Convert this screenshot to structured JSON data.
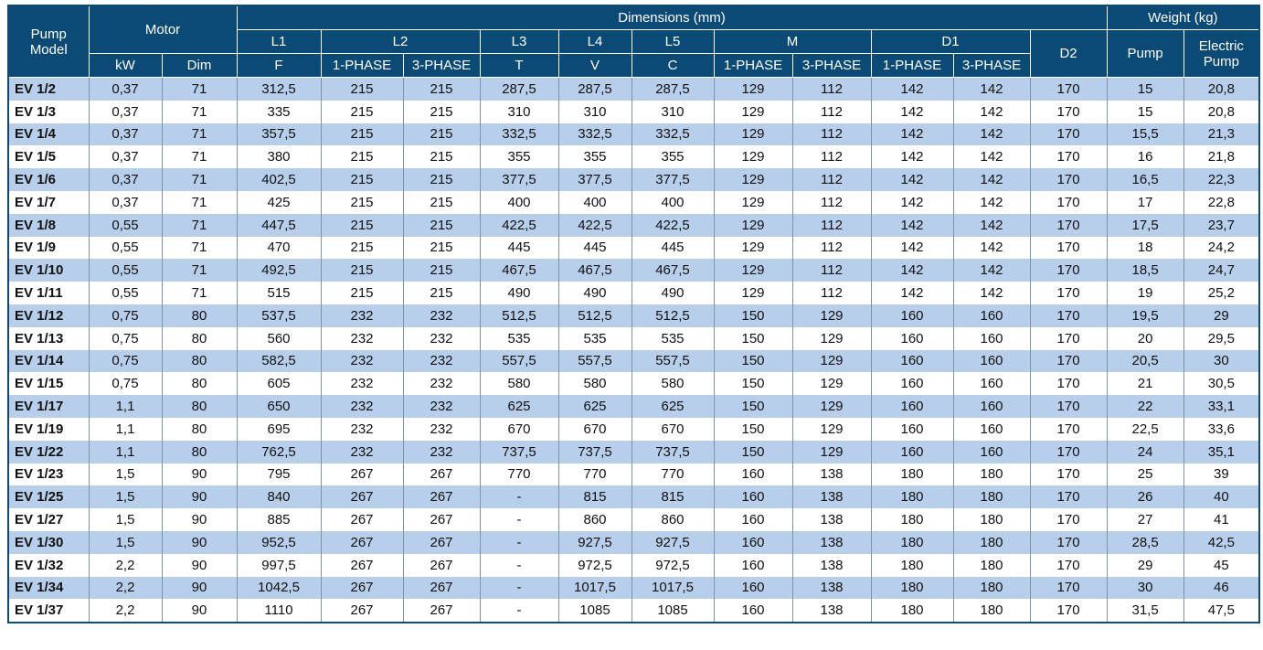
{
  "header": {
    "pump_model": "Pump Model",
    "motor": "Motor",
    "kw": "kW",
    "dim": "Dim",
    "dimensions": "Dimensions (mm)",
    "l1": "L1",
    "f": "F",
    "l2": "L2",
    "l2_1phase": "1-PHASE",
    "l2_3phase": "3-PHASE",
    "l3": "L3",
    "t": "T",
    "l4": "L4",
    "v": "V",
    "l5": "L5",
    "c": "C",
    "m": "M",
    "m_1phase": "1-PHASE",
    "m_3phase": "3-PHASE",
    "d1": "D1",
    "d1_1phase": "1-PHASE",
    "d1_3phase": "3-PHASE",
    "d2": "D2",
    "weight": "Weight (kg)",
    "pump": "Pump",
    "electric_pump": "Electric Pump"
  },
  "table": {
    "rows": [
      [
        "EV 1/2",
        "0,37",
        "71",
        "312,5",
        "215",
        "215",
        "287,5",
        "287,5",
        "287,5",
        "129",
        "112",
        "142",
        "142",
        "170",
        "15",
        "20,8"
      ],
      [
        "EV 1/3",
        "0,37",
        "71",
        "335",
        "215",
        "215",
        "310",
        "310",
        "310",
        "129",
        "112",
        "142",
        "142",
        "170",
        "15",
        "20,8"
      ],
      [
        "EV 1/4",
        "0,37",
        "71",
        "357,5",
        "215",
        "215",
        "332,5",
        "332,5",
        "332,5",
        "129",
        "112",
        "142",
        "142",
        "170",
        "15,5",
        "21,3"
      ],
      [
        "EV 1/5",
        "0,37",
        "71",
        "380",
        "215",
        "215",
        "355",
        "355",
        "355",
        "129",
        "112",
        "142",
        "142",
        "170",
        "16",
        "21,8"
      ],
      [
        "EV 1/6",
        "0,37",
        "71",
        "402,5",
        "215",
        "215",
        "377,5",
        "377,5",
        "377,5",
        "129",
        "112",
        "142",
        "142",
        "170",
        "16,5",
        "22,3"
      ],
      [
        "EV 1/7",
        "0,37",
        "71",
        "425",
        "215",
        "215",
        "400",
        "400",
        "400",
        "129",
        "112",
        "142",
        "142",
        "170",
        "17",
        "22,8"
      ],
      [
        "EV 1/8",
        "0,55",
        "71",
        "447,5",
        "215",
        "215",
        "422,5",
        "422,5",
        "422,5",
        "129",
        "112",
        "142",
        "142",
        "170",
        "17,5",
        "23,7"
      ],
      [
        "EV 1/9",
        "0,55",
        "71",
        "470",
        "215",
        "215",
        "445",
        "445",
        "445",
        "129",
        "112",
        "142",
        "142",
        "170",
        "18",
        "24,2"
      ],
      [
        "EV 1/10",
        "0,55",
        "71",
        "492,5",
        "215",
        "215",
        "467,5",
        "467,5",
        "467,5",
        "129",
        "112",
        "142",
        "142",
        "170",
        "18,5",
        "24,7"
      ],
      [
        "EV 1/11",
        "0,55",
        "71",
        "515",
        "215",
        "215",
        "490",
        "490",
        "490",
        "129",
        "112",
        "142",
        "142",
        "170",
        "19",
        "25,2"
      ],
      [
        "EV 1/12",
        "0,75",
        "80",
        "537,5",
        "232",
        "232",
        "512,5",
        "512,5",
        "512,5",
        "150",
        "129",
        "160",
        "160",
        "170",
        "19,5",
        "29"
      ],
      [
        "EV 1/13",
        "0,75",
        "80",
        "560",
        "232",
        "232",
        "535",
        "535",
        "535",
        "150",
        "129",
        "160",
        "160",
        "170",
        "20",
        "29,5"
      ],
      [
        "EV 1/14",
        "0,75",
        "80",
        "582,5",
        "232",
        "232",
        "557,5",
        "557,5",
        "557,5",
        "150",
        "129",
        "160",
        "160",
        "170",
        "20,5",
        "30"
      ],
      [
        "EV 1/15",
        "0,75",
        "80",
        "605",
        "232",
        "232",
        "580",
        "580",
        "580",
        "150",
        "129",
        "160",
        "160",
        "170",
        "21",
        "30,5"
      ],
      [
        "EV 1/17",
        "1,1",
        "80",
        "650",
        "232",
        "232",
        "625",
        "625",
        "625",
        "150",
        "129",
        "160",
        "160",
        "170",
        "22",
        "33,1"
      ],
      [
        "EV 1/19",
        "1,1",
        "80",
        "695",
        "232",
        "232",
        "670",
        "670",
        "670",
        "150",
        "129",
        "160",
        "160",
        "170",
        "22,5",
        "33,6"
      ],
      [
        "EV 1/22",
        "1,1",
        "80",
        "762,5",
        "232",
        "232",
        "737,5",
        "737,5",
        "737,5",
        "150",
        "129",
        "160",
        "160",
        "170",
        "24",
        "35,1"
      ],
      [
        "EV 1/23",
        "1,5",
        "90",
        "795",
        "267",
        "267",
        "770",
        "770",
        "770",
        "160",
        "138",
        "180",
        "180",
        "170",
        "25",
        "39"
      ],
      [
        "EV 1/25",
        "1,5",
        "90",
        "840",
        "267",
        "267",
        "-",
        "815",
        "815",
        "160",
        "138",
        "180",
        "180",
        "170",
        "26",
        "40"
      ],
      [
        "EV 1/27",
        "1,5",
        "90",
        "885",
        "267",
        "267",
        "-",
        "860",
        "860",
        "160",
        "138",
        "180",
        "180",
        "170",
        "27",
        "41"
      ],
      [
        "EV 1/30",
        "1,5",
        "90",
        "952,5",
        "267",
        "267",
        "-",
        "927,5",
        "927,5",
        "160",
        "138",
        "180",
        "180",
        "170",
        "28,5",
        "42,5"
      ],
      [
        "EV 1/32",
        "2,2",
        "90",
        "997,5",
        "267",
        "267",
        "-",
        "972,5",
        "972,5",
        "160",
        "138",
        "180",
        "180",
        "170",
        "29",
        "45"
      ],
      [
        "EV 1/34",
        "2,2",
        "90",
        "1042,5",
        "267",
        "267",
        "-",
        "1017,5",
        "1017,5",
        "160",
        "138",
        "180",
        "180",
        "170",
        "30",
        "46"
      ],
      [
        "EV 1/37",
        "2,2",
        "90",
        "1110",
        "267",
        "267",
        "-",
        "1085",
        "1085",
        "160",
        "138",
        "180",
        "180",
        "170",
        "31,5",
        "47,5"
      ]
    ]
  }
}
